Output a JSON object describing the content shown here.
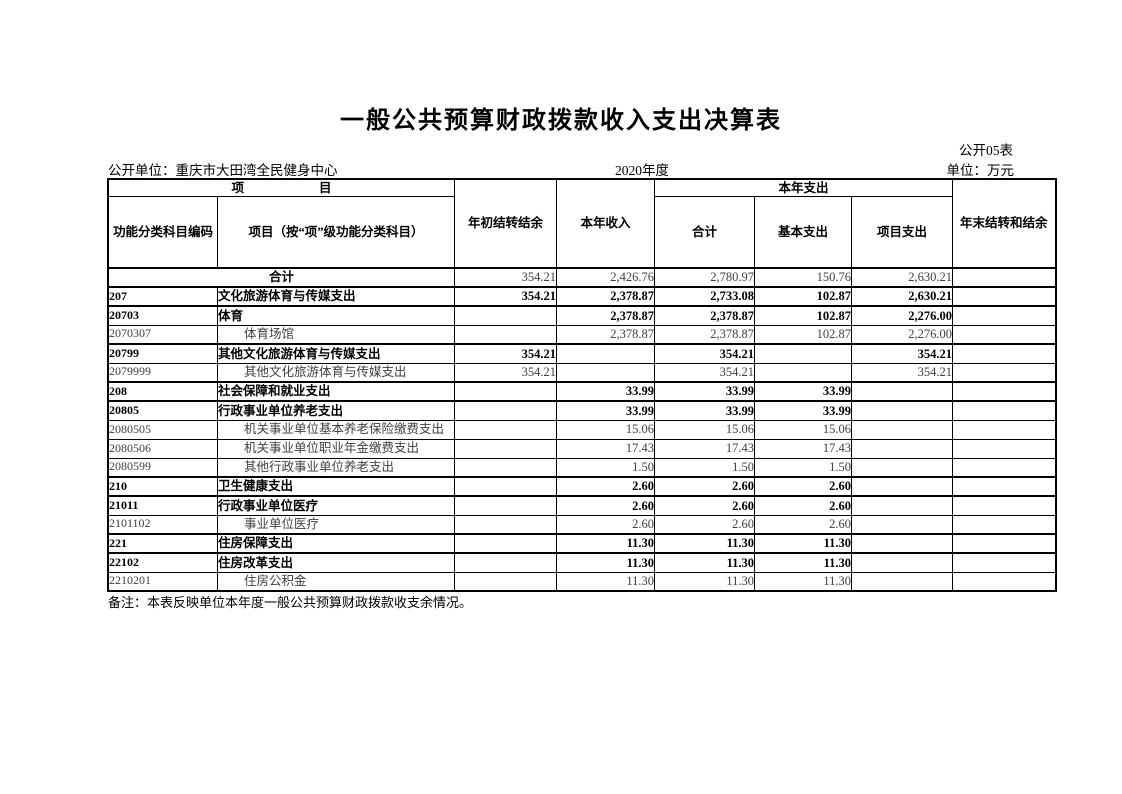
{
  "page": {
    "title": "一般公共预算财政拨款收入支出决算表",
    "table_no": "公开05表",
    "disclosing_unit": "公开单位：重庆市大田湾全民健身中心",
    "fiscal_year": "2020年度",
    "unit_of_measure": "单位：万元",
    "note": "备注：本表反映单位本年度一般公共预算财政拨款收支余情况。"
  },
  "table": {
    "header": {
      "item_group": "项　　　　　　目",
      "code": "功能分类科目编码",
      "item": "项目（按“项”级功能分类科目）",
      "begin_balance": "年初结转结余",
      "income": "本年收入",
      "expenditure_group": "本年支出",
      "exp_total": "合计",
      "exp_basic": "基本支出",
      "exp_project": "项目支出",
      "end_balance": "年末结转和结余"
    },
    "rows": [
      {
        "style": "total",
        "code": "",
        "name": "合计",
        "values": [
          "354.21",
          "2,426.76",
          "2,780.97",
          "150.76",
          "2,630.21",
          ""
        ]
      },
      {
        "style": "bold",
        "code": "207",
        "name": "文化旅游体育与传媒支出",
        "values": [
          "354.21",
          "2,378.87",
          "2,733.08",
          "102.87",
          "2,630.21",
          ""
        ]
      },
      {
        "style": "bold",
        "code": "20703",
        "name": "体育",
        "values": [
          "",
          "2,378.87",
          "2,378.87",
          "102.87",
          "2,276.00",
          ""
        ]
      },
      {
        "style": "detail",
        "code": "2070307",
        "name": "体育场馆",
        "values": [
          "",
          "2,378.87",
          "2,378.87",
          "102.87",
          "2,276.00",
          ""
        ]
      },
      {
        "style": "bold",
        "code": "20799",
        "name": "其他文化旅游体育与传媒支出",
        "values": [
          "354.21",
          "",
          "354.21",
          "",
          "354.21",
          ""
        ]
      },
      {
        "style": "detail",
        "code": "2079999",
        "name": "其他文化旅游体育与传媒支出",
        "values": [
          "354.21",
          "",
          "354.21",
          "",
          "354.21",
          ""
        ]
      },
      {
        "style": "bold",
        "code": "208",
        "name": "社会保障和就业支出",
        "values": [
          "",
          "33.99",
          "33.99",
          "33.99",
          "",
          ""
        ]
      },
      {
        "style": "bold",
        "code": "20805",
        "name": "行政事业单位养老支出",
        "values": [
          "",
          "33.99",
          "33.99",
          "33.99",
          "",
          ""
        ]
      },
      {
        "style": "detail",
        "code": "2080505",
        "name": "机关事业单位基本养老保险缴费支出",
        "values": [
          "",
          "15.06",
          "15.06",
          "15.06",
          "",
          ""
        ]
      },
      {
        "style": "detail",
        "code": "2080506",
        "name": "机关事业单位职业年金缴费支出",
        "values": [
          "",
          "17.43",
          "17.43",
          "17.43",
          "",
          ""
        ]
      },
      {
        "style": "detail",
        "code": "2080599",
        "name": "其他行政事业单位养老支出",
        "values": [
          "",
          "1.50",
          "1.50",
          "1.50",
          "",
          ""
        ]
      },
      {
        "style": "bold",
        "code": "210",
        "name": "卫生健康支出",
        "values": [
          "",
          "2.60",
          "2.60",
          "2.60",
          "",
          ""
        ]
      },
      {
        "style": "bold",
        "code": "21011",
        "name": "行政事业单位医疗",
        "values": [
          "",
          "2.60",
          "2.60",
          "2.60",
          "",
          ""
        ]
      },
      {
        "style": "detail",
        "code": "2101102",
        "name": "事业单位医疗",
        "values": [
          "",
          "2.60",
          "2.60",
          "2.60",
          "",
          ""
        ]
      },
      {
        "style": "bold",
        "code": "221",
        "name": "住房保障支出",
        "values": [
          "",
          "11.30",
          "11.30",
          "11.30",
          "",
          ""
        ]
      },
      {
        "style": "bold",
        "code": "22102",
        "name": "住房改革支出",
        "values": [
          "",
          "11.30",
          "11.30",
          "11.30",
          "",
          ""
        ]
      },
      {
        "style": "detail",
        "code": "2210201",
        "name": "住房公积金",
        "values": [
          "",
          "11.30",
          "11.30",
          "11.30",
          "",
          ""
        ]
      }
    ]
  }
}
